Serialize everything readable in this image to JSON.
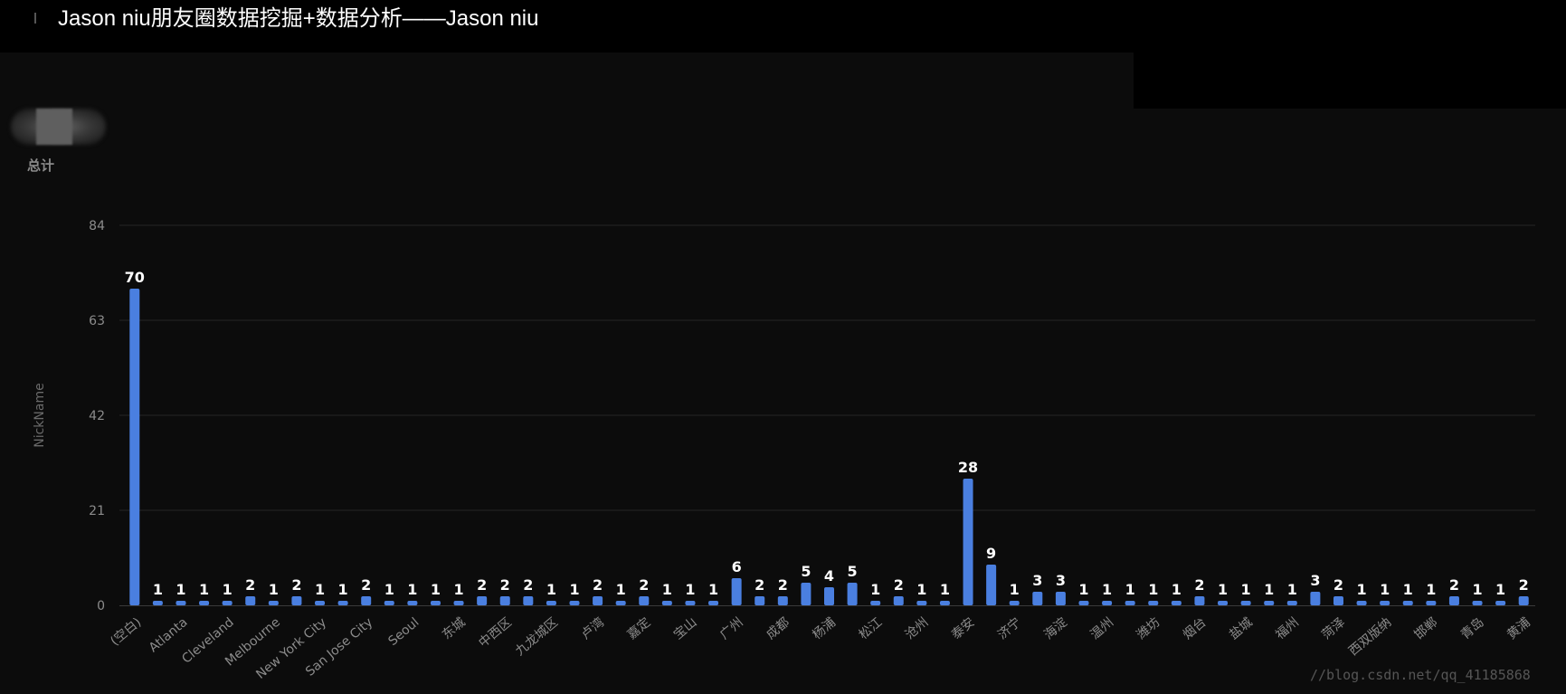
{
  "header": {
    "title": "Jason niu朋友圈数据挖掘+数据分析——Jason niu"
  },
  "summary": {
    "label": "总计"
  },
  "watermark": "//blog.csdn.net/qq_41185868",
  "colors": {
    "bar": "#4a7fe0",
    "background": "#0c0c0c",
    "value_label": "#ffffff",
    "tick_label": "#8c8c8c",
    "grid": "#262626"
  },
  "chart_data": {
    "type": "bar",
    "ylabel": "NickName",
    "ylim": [
      0,
      84
    ],
    "yticks": [
      0,
      21,
      42,
      63,
      84
    ],
    "grid": true,
    "categories": [
      "(空白)",
      "",
      "Atlanta",
      "",
      "Cleveland",
      "",
      "Melbourne",
      "",
      "New York City",
      "",
      "San Jose City",
      "",
      "Seoul",
      "",
      "东城",
      "",
      "中西区",
      "",
      "九龙城区",
      "",
      "卢湾",
      "",
      "嘉定",
      "",
      "宝山",
      "",
      "广州",
      "",
      "成都",
      "",
      "杨浦",
      "",
      "松江",
      "",
      "沧州",
      "",
      "泰安",
      "",
      "济宁",
      "",
      "海淀",
      "",
      "温州",
      "",
      "潍坊",
      "",
      "烟台",
      "",
      "盐城",
      "",
      "福州",
      "",
      "菏泽",
      "",
      "西双版纳",
      "",
      "邯郸",
      "",
      "青岛",
      "",
      "黄浦"
    ],
    "values": [
      70,
      1,
      1,
      1,
      1,
      2,
      1,
      2,
      1,
      1,
      2,
      1,
      1,
      1,
      1,
      2,
      2,
      2,
      1,
      1,
      2,
      1,
      2,
      1,
      1,
      1,
      6,
      2,
      2,
      5,
      4,
      5,
      1,
      2,
      1,
      1,
      28,
      9,
      1,
      3,
      3,
      1,
      1,
      1,
      1,
      1,
      2,
      1,
      1,
      1,
      1,
      3,
      2,
      1,
      1,
      1,
      1,
      2,
      1,
      1,
      2
    ]
  }
}
